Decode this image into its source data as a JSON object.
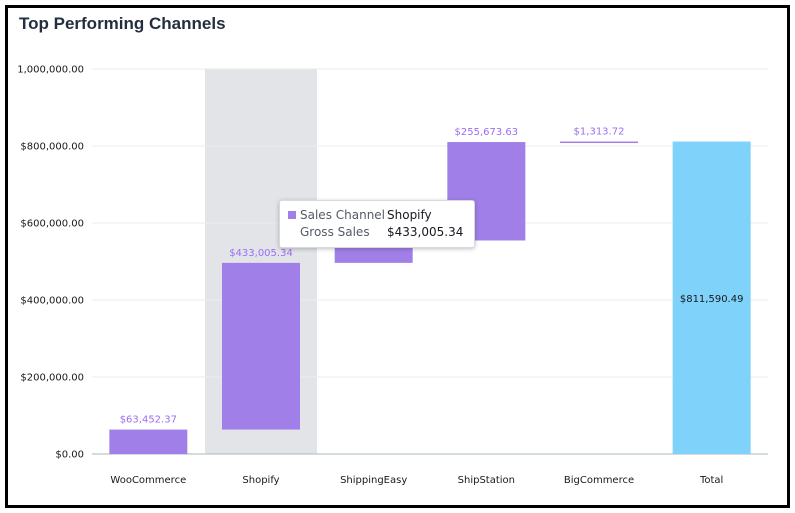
{
  "page": {
    "title": "Top Performing Channels"
  },
  "colors": {
    "increase": "#a17fe8",
    "increase_label": "#9b6ef3",
    "total": "#7fd3fb",
    "highlight": "#e3e4e8",
    "grid": "#e9ebed"
  },
  "tooltip": {
    "rows": [
      {
        "key": "Sales Channel",
        "value": "Shopify"
      },
      {
        "key": "Gross Sales",
        "value": "$433,005.34"
      }
    ]
  },
  "chart_data": {
    "type": "bar",
    "subtype": "waterfall",
    "title": "Top Performing Channels",
    "xlabel": "",
    "ylabel": "",
    "categories": [
      "WooCommerce",
      "Shopify",
      "ShippingEasy",
      "ShipStation",
      "BigCommerce",
      "Total"
    ],
    "values": [
      63452.37,
      433005.34,
      58145.43,
      255673.63,
      1313.72,
      811590.49
    ],
    "data_labels": [
      "$63,452.37",
      "$433,005.34",
      "",
      "$255,673.63",
      "$1,313.72",
      "$811,590.49"
    ],
    "ylim": [
      0,
      1000000
    ],
    "yticks": [
      "$0.00",
      "$200,000.00",
      "$400,000.00",
      "$600,000.00",
      "$800,000.00",
      "1,000,000.00"
    ],
    "grid": true,
    "highlighted_category": "Shopify"
  }
}
